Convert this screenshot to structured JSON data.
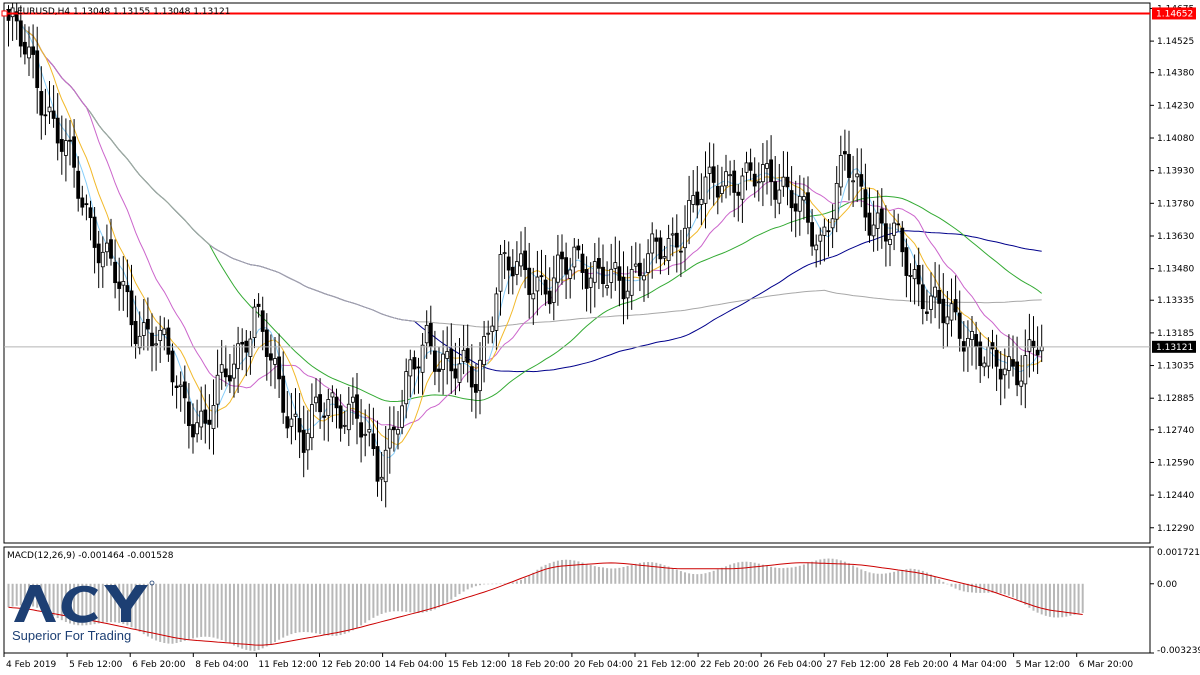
{
  "chart_data": [
    {
      "type": "candlestick",
      "symbol": "EURUSD,H4",
      "info": "EURUSD,H4  1.13048 1.13155 1.13048 1.13121",
      "ylim": [
        1.1222,
        1.147
      ],
      "price_ticks": [
        "1.14675",
        "1.14525",
        "1.14380",
        "1.14230",
        "1.14080",
        "1.13930",
        "1.13780",
        "1.13630",
        "1.13480",
        "1.13335",
        "1.13185",
        "1.13035",
        "1.12885",
        "1.12740",
        "1.12590",
        "1.12440",
        "1.12290"
      ],
      "resistance_level": "1.14652",
      "current_price": "1.13121",
      "time_labels": [
        "4 Feb 2019",
        "5 Feb 12:00",
        "6 Feb 20:00",
        "8 Feb 04:00",
        "11 Feb 12:00",
        "12 Feb 20:00",
        "14 Feb 04:00",
        "15 Feb 12:00",
        "18 Feb 20:00",
        "20 Feb 04:00",
        "21 Feb 12:00",
        "22 Feb 20:00",
        "26 Feb 04:00",
        "27 Feb 12:00",
        "28 Feb 20:00",
        "4 Mar 04:00",
        "5 Mar 12:00",
        "6 Mar 20:00"
      ],
      "close_anchors": [
        [
          0,
          1.1462
        ],
        [
          6,
          1.144
        ],
        [
          12,
          1.141
        ],
        [
          18,
          1.138
        ],
        [
          24,
          1.1352
        ],
        [
          30,
          1.1325
        ],
        [
          36,
          1.1318
        ],
        [
          42,
          1.129
        ],
        [
          48,
          1.1274
        ],
        [
          54,
          1.1305
        ],
        [
          60,
          1.1325
        ],
        [
          66,
          1.1295
        ],
        [
          72,
          1.1268
        ],
        [
          78,
          1.129
        ],
        [
          84,
          1.128
        ],
        [
          90,
          1.1258
        ],
        [
          96,
          1.1285
        ],
        [
          102,
          1.1318
        ],
        [
          108,
          1.13
        ],
        [
          114,
          1.13
        ],
        [
          120,
          1.1345
        ],
        [
          126,
          1.135
        ],
        [
          132,
          1.1335
        ],
        [
          138,
          1.1358
        ],
        [
          144,
          1.134
        ],
        [
          150,
          1.1345
        ],
        [
          156,
          1.135
        ],
        [
          162,
          1.1362
        ],
        [
          168,
          1.1378
        ],
        [
          174,
          1.1393
        ],
        [
          180,
          1.1385
        ],
        [
          186,
          1.1395
        ],
        [
          192,
          1.1375
        ],
        [
          198,
          1.1362
        ],
        [
          204,
          1.1395
        ],
        [
          210,
          1.1375
        ],
        [
          216,
          1.136
        ],
        [
          222,
          1.1342
        ],
        [
          228,
          1.1325
        ],
        [
          234,
          1.132
        ],
        [
          240,
          1.13
        ],
        [
          246,
          1.1305
        ],
        [
          252,
          1.1312
        ]
      ],
      "moving_averages": [
        {
          "color": "#00008b"
        },
        {
          "color": "#33aa33"
        },
        {
          "color": "#a8a8a8"
        },
        {
          "color": "#cc66cc"
        },
        {
          "color": "#f2b92a"
        },
        {
          "color": "#87cefa"
        }
      ]
    },
    {
      "type": "bar",
      "title": "MACD(12,26,9) -0.001464 -0.001528",
      "ylim": [
        -0.003239,
        0.001721
      ],
      "ticks": [
        "0.001721",
        "0.00",
        "-0.003239"
      ],
      "anchors": [
        [
          0,
          -0.0011
        ],
        [
          20,
          -0.0018
        ],
        [
          40,
          -0.0026
        ],
        [
          60,
          -0.0029
        ],
        [
          80,
          -0.0022
        ],
        [
          100,
          -0.0012
        ],
        [
          115,
          -0.0003
        ],
        [
          130,
          0.0008
        ],
        [
          145,
          0.001
        ],
        [
          160,
          0.0007
        ],
        [
          175,
          0.0007
        ],
        [
          190,
          0.001
        ],
        [
          205,
          0.0009
        ],
        [
          220,
          0.0005
        ],
        [
          235,
          -0.0002
        ],
        [
          250,
          -0.0012
        ],
        [
          262,
          -0.0015
        ]
      ],
      "signal_color": "#cc0000",
      "hist_color": "#b8b8b8"
    }
  ],
  "brand": {
    "logo": "ACY",
    "tagline": "Superior For Trading",
    "color": "#1d3f73"
  }
}
